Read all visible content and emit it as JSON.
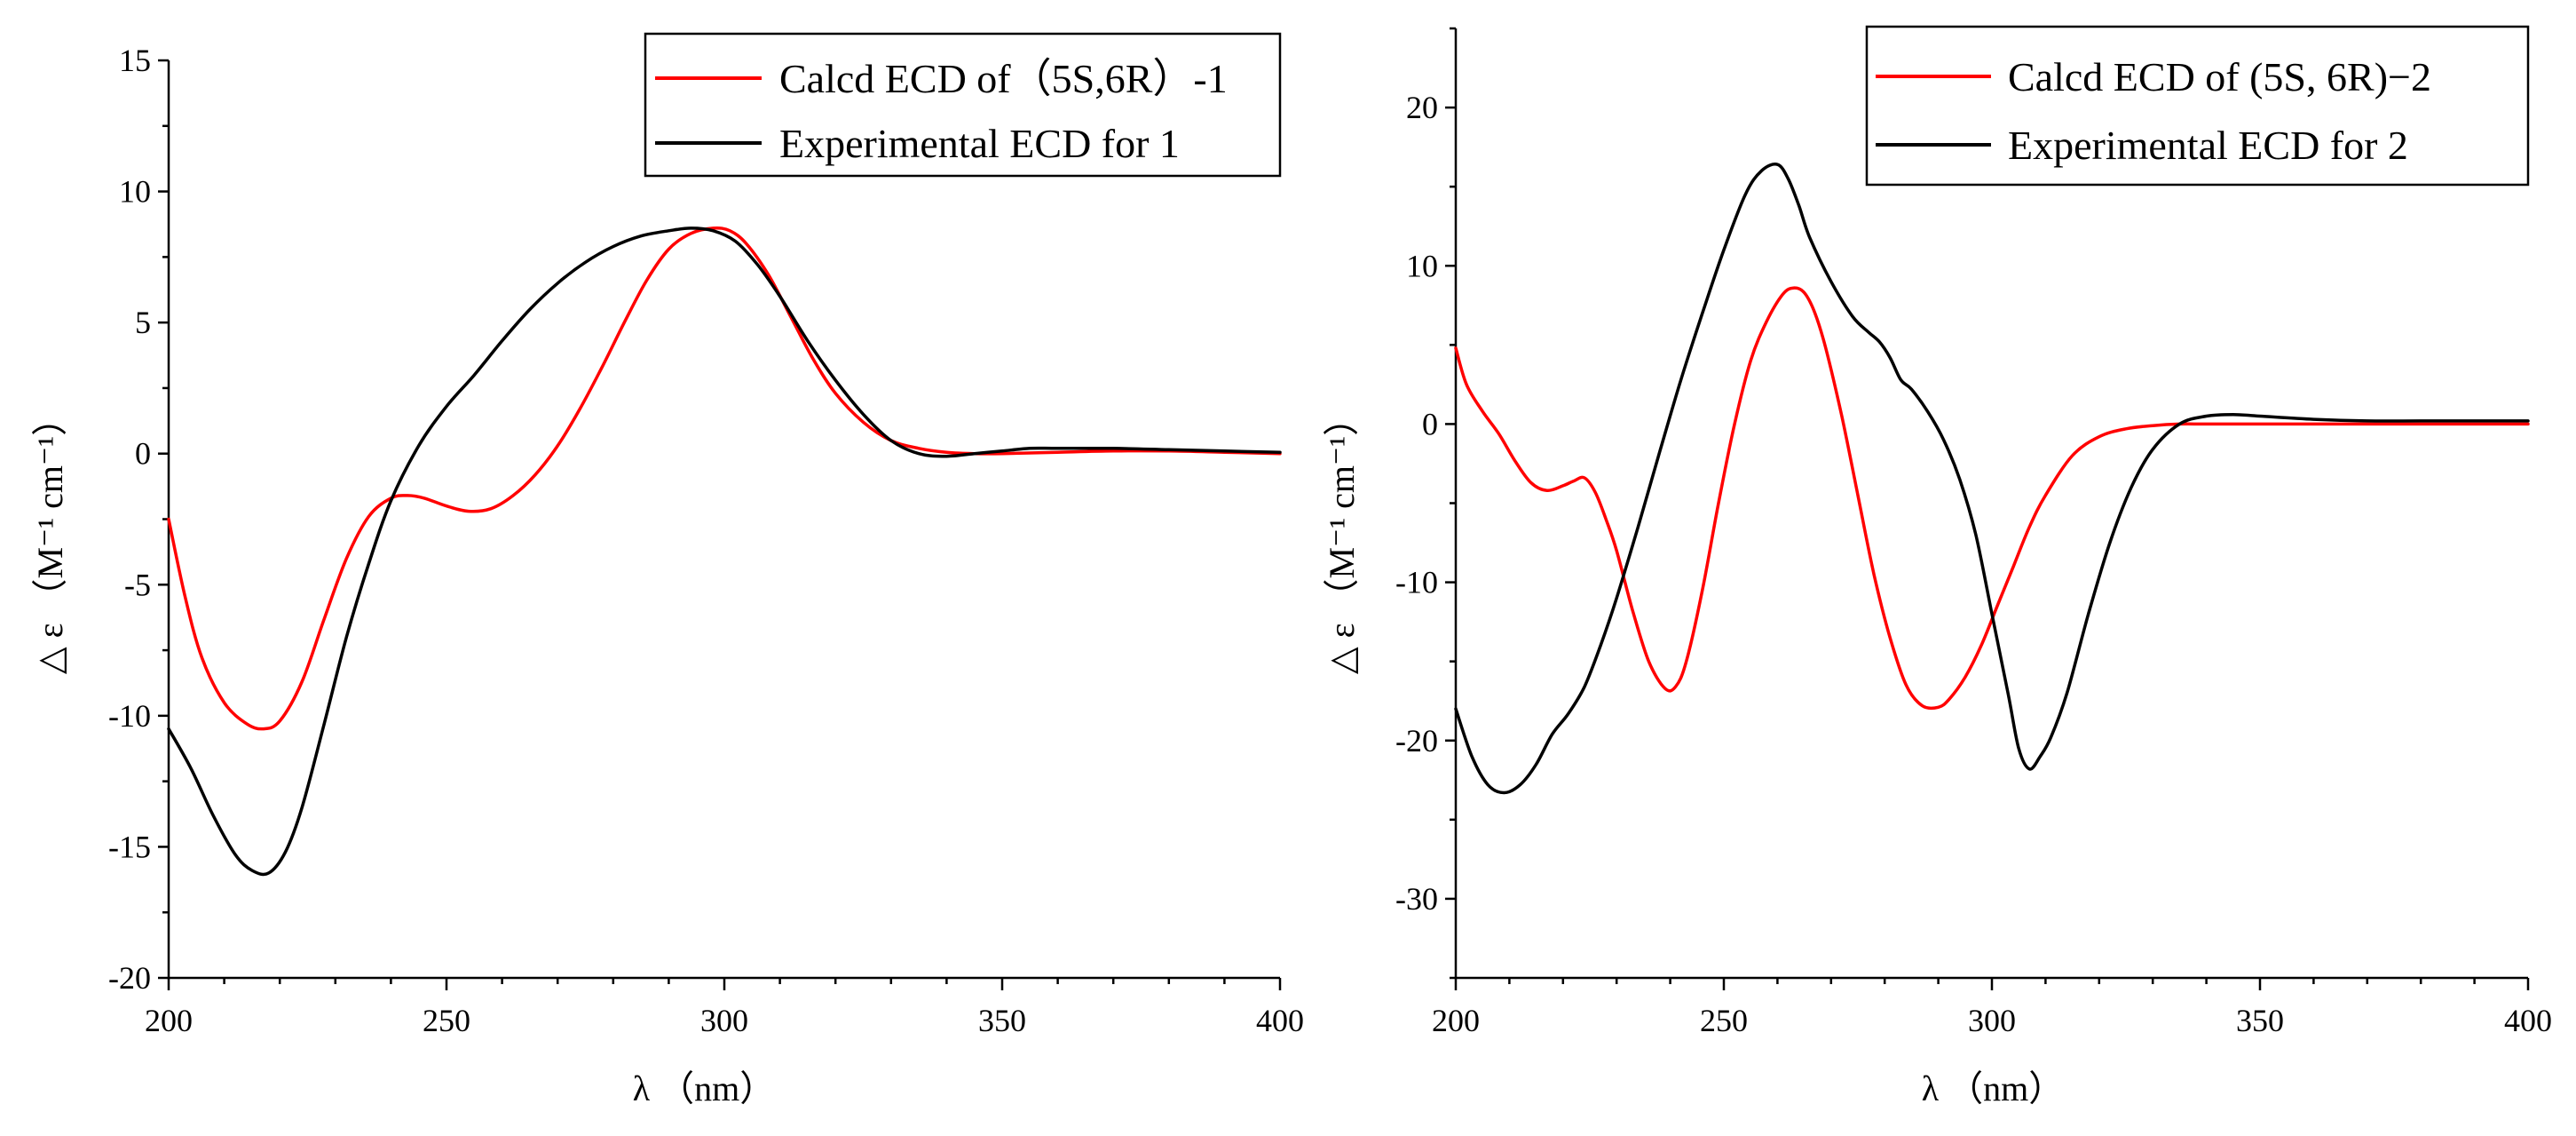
{
  "chart_data": [
    {
      "type": "line",
      "xlabel": "λ （nm）",
      "ylabel": "△ ε （M⁻¹ cm⁻¹）",
      "xlim": [
        200,
        400
      ],
      "ylim": [
        -20,
        15
      ],
      "xticks": [
        200,
        250,
        300,
        350,
        400
      ],
      "yticks": [
        -20,
        -15,
        -10,
        -5,
        0,
        5,
        10,
        15
      ],
      "legend_position": "top-right",
      "series": [
        {
          "name": "Calcd ECD of（5S,6R）-1",
          "color": "#ff0000",
          "x": [
            200,
            203,
            206,
            210,
            214,
            217,
            220,
            224,
            228,
            232,
            236,
            240,
            243,
            246,
            250,
            254,
            258,
            262,
            266,
            270,
            274,
            278,
            282,
            286,
            290,
            294,
            298,
            301,
            304,
            308,
            312,
            316,
            320,
            325,
            330,
            335,
            340,
            345,
            350,
            360,
            370,
            380,
            390,
            400
          ],
          "y": [
            -2.5,
            -5.5,
            -7.8,
            -9.5,
            -10.3,
            -10.5,
            -10.2,
            -8.7,
            -6.3,
            -4.0,
            -2.4,
            -1.7,
            -1.6,
            -1.7,
            -2.0,
            -2.2,
            -2.1,
            -1.6,
            -0.8,
            0.3,
            1.7,
            3.3,
            5.0,
            6.6,
            7.8,
            8.4,
            8.6,
            8.5,
            8.0,
            6.8,
            5.2,
            3.6,
            2.3,
            1.2,
            0.5,
            0.2,
            0.05,
            0.0,
            0.0,
            0.05,
            0.1,
            0.1,
            0.05,
            0.0
          ]
        },
        {
          "name": "Experimental ECD for 1",
          "color": "#000000",
          "x": [
            200,
            204,
            208,
            212,
            215,
            218,
            221,
            224,
            228,
            232,
            236,
            240,
            245,
            250,
            255,
            260,
            265,
            270,
            275,
            280,
            285,
            290,
            294,
            298,
            302,
            306,
            310,
            315,
            320,
            325,
            330,
            335,
            340,
            345,
            350,
            355,
            360,
            370,
            380,
            390,
            400
          ],
          "y": [
            -10.5,
            -12.0,
            -13.8,
            -15.3,
            -15.9,
            -16.0,
            -15.2,
            -13.5,
            -10.3,
            -7.0,
            -4.2,
            -1.8,
            0.3,
            1.8,
            3.0,
            4.3,
            5.5,
            6.5,
            7.3,
            7.9,
            8.3,
            8.5,
            8.6,
            8.5,
            8.1,
            7.2,
            6.0,
            4.3,
            2.8,
            1.5,
            0.5,
            0.0,
            -0.1,
            0.0,
            0.1,
            0.2,
            0.2,
            0.2,
            0.15,
            0.1,
            0.05
          ]
        }
      ]
    },
    {
      "type": "line",
      "xlabel": "λ （nm）",
      "ylabel": "△ ε （M⁻¹ cm⁻¹）",
      "xlim": [
        200,
        400
      ],
      "ylim": [
        -35,
        25
      ],
      "xticks": [
        200,
        250,
        300,
        350,
        400
      ],
      "yticks": [
        -30,
        -20,
        -10,
        0,
        10,
        20
      ],
      "legend_position": "top-right",
      "series": [
        {
          "name": "Calcd ECD of (5S, 6R)−2",
          "color": "#ff0000",
          "x": [
            200,
            202,
            205,
            208,
            211,
            214,
            217,
            220,
            222,
            224,
            226,
            228,
            230,
            233,
            236,
            239,
            241,
            243,
            246,
            249,
            252,
            255,
            258,
            261,
            263,
            265,
            267,
            269,
            272,
            275,
            278,
            281,
            284,
            287,
            290,
            292,
            295,
            298,
            301,
            304,
            307,
            310,
            315,
            320,
            325,
            330,
            335,
            340,
            350,
            360,
            370,
            380,
            390,
            400
          ],
          "y": [
            4.8,
            2.5,
            0.8,
            -0.6,
            -2.3,
            -3.7,
            -4.2,
            -3.9,
            -3.6,
            -3.4,
            -4.3,
            -6.0,
            -8.0,
            -11.8,
            -15.0,
            -16.7,
            -16.6,
            -15.0,
            -10.5,
            -5.0,
            0.0,
            4.0,
            6.5,
            8.2,
            8.6,
            8.3,
            7.0,
            4.8,
            0.5,
            -4.5,
            -9.5,
            -13.5,
            -16.5,
            -17.8,
            -17.9,
            -17.4,
            -16.0,
            -14.0,
            -11.5,
            -9.0,
            -6.5,
            -4.5,
            -2.0,
            -0.8,
            -0.3,
            -0.1,
            0.0,
            0.0,
            0.0,
            0.0,
            0.0,
            0.0,
            0.0,
            0.0
          ]
        },
        {
          "name": "Experimental ECD for  2",
          "color": "#000000",
          "x": [
            200,
            203,
            206,
            209,
            212,
            215,
            218,
            221,
            224,
            227,
            230,
            234,
            238,
            242,
            246,
            250,
            254,
            257,
            260,
            262,
            264,
            266,
            270,
            274,
            277,
            279,
            281,
            283,
            285,
            288,
            291,
            294,
            297,
            300,
            303,
            305,
            307,
            309,
            311,
            314,
            318,
            322,
            326,
            330,
            335,
            340,
            345,
            350,
            360,
            370,
            380,
            390,
            400
          ],
          "y": [
            -18.0,
            -21.0,
            -22.8,
            -23.3,
            -22.8,
            -21.5,
            -19.6,
            -18.3,
            -16.6,
            -14.0,
            -11.0,
            -6.5,
            -1.8,
            2.8,
            7.0,
            11.0,
            14.5,
            16.0,
            16.4,
            15.5,
            13.8,
            11.8,
            9.0,
            6.8,
            5.8,
            5.2,
            4.2,
            2.8,
            2.2,
            0.8,
            -1.0,
            -3.5,
            -7.0,
            -12.0,
            -17.0,
            -20.5,
            -21.8,
            -21.0,
            -19.8,
            -17.0,
            -12.0,
            -7.5,
            -4.0,
            -1.6,
            0.0,
            0.5,
            0.6,
            0.5,
            0.3,
            0.2,
            0.2,
            0.2,
            0.2
          ]
        }
      ]
    }
  ]
}
